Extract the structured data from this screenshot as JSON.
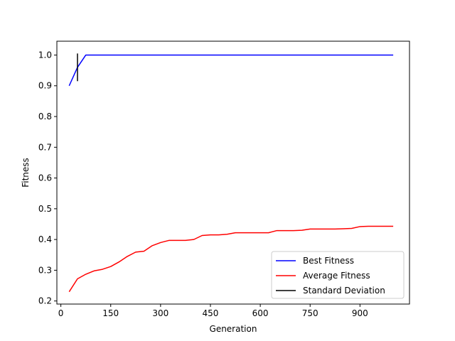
{
  "chart_data": {
    "type": "line",
    "xlabel": "Generation",
    "ylabel": "Fitness",
    "xlim": [
      -12,
      1049
    ],
    "ylim": [
      0.19,
      1.045
    ],
    "xticks": [
      0,
      150,
      300,
      450,
      600,
      750,
      900
    ],
    "yticks": [
      0.2,
      0.3,
      0.4,
      0.5,
      0.6,
      0.7,
      0.8,
      0.9,
      1.0
    ],
    "xtick_labels": [
      "0",
      "150",
      "300",
      "450",
      "600",
      "750",
      "900"
    ],
    "ytick_labels": [
      "0.2",
      "0.3",
      "0.4",
      "0.5",
      "0.6",
      "0.7",
      "0.8",
      "0.9",
      "1.0"
    ],
    "grid": false,
    "legend_position": "lower-right",
    "series": [
      {
        "name": "Best Fitness",
        "color": "#0000ff",
        "x": [
          25,
          50,
          75,
          100,
          125,
          150,
          175,
          200,
          225,
          250,
          275,
          300,
          325,
          350,
          375,
          400,
          425,
          450,
          475,
          500,
          525,
          550,
          575,
          600,
          625,
          650,
          675,
          700,
          725,
          750,
          775,
          800,
          825,
          850,
          875,
          900,
          925,
          950,
          975,
          1000
        ],
        "y": [
          0.9,
          0.96,
          1.0,
          1.0,
          1.0,
          1.0,
          1.0,
          1.0,
          1.0,
          1.0,
          1.0,
          1.0,
          1.0,
          1.0,
          1.0,
          1.0,
          1.0,
          1.0,
          1.0,
          1.0,
          1.0,
          1.0,
          1.0,
          1.0,
          1.0,
          1.0,
          1.0,
          1.0,
          1.0,
          1.0,
          1.0,
          1.0,
          1.0,
          1.0,
          1.0,
          1.0,
          1.0,
          1.0,
          1.0,
          1.0
        ]
      },
      {
        "name": "Average Fitness",
        "color": "#ff0000",
        "x": [
          25,
          50,
          75,
          100,
          125,
          150,
          175,
          200,
          225,
          250,
          275,
          300,
          325,
          350,
          375,
          400,
          425,
          450,
          475,
          500,
          525,
          550,
          575,
          600,
          625,
          650,
          675,
          700,
          725,
          750,
          775,
          800,
          825,
          850,
          875,
          900,
          925,
          950,
          975,
          1000
        ],
        "y": [
          0.23,
          0.272,
          0.287,
          0.298,
          0.303,
          0.312,
          0.327,
          0.345,
          0.359,
          0.362,
          0.38,
          0.39,
          0.397,
          0.397,
          0.397,
          0.4,
          0.413,
          0.415,
          0.415,
          0.417,
          0.422,
          0.422,
          0.422,
          0.422,
          0.422,
          0.429,
          0.429,
          0.429,
          0.43,
          0.434,
          0.434,
          0.434,
          0.434,
          0.435,
          0.436,
          0.442,
          0.443,
          0.443,
          0.443,
          0.443
        ]
      },
      {
        "name": "Standard Deviation",
        "color": "#000000",
        "type": "errorbar",
        "x": [
          50
        ],
        "y_low": [
          0.915
        ],
        "y_high": [
          1.005
        ]
      }
    ]
  }
}
